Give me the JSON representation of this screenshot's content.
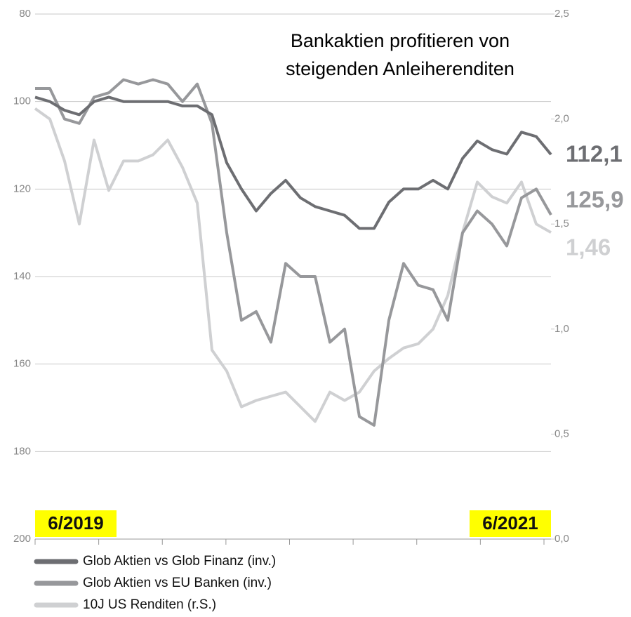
{
  "chart_data": {
    "type": "line",
    "title": [
      "Bankaktien profitieren von",
      "steigenden Anleiherenditen"
    ],
    "start_label": "6/2019",
    "end_label": "6/2021",
    "ylim": [
      80,
      200
    ],
    "y_inverted": true,
    "yticks": [
      80,
      100,
      120,
      140,
      160,
      180,
      200
    ],
    "y2lim": [
      0,
      2.5
    ],
    "y2ticks": [
      {
        "value": 0,
        "label": "0,0"
      },
      {
        "value": 0.5,
        "label": "0,5"
      },
      {
        "value": 1,
        "label": "1,0"
      },
      {
        "value": 1.5,
        "label": "1,5"
      },
      {
        "value": 2,
        "label": "2,0"
      },
      {
        "value": 2.5,
        "label": "2,5"
      }
    ],
    "grid": true,
    "series": [
      {
        "name": "Glob Aktien vs Glob Finanz (inv.)",
        "color": "#6d6e72",
        "last_label": "112,1",
        "values": [
          99,
          100,
          102,
          103,
          100,
          99,
          100,
          100,
          100,
          100,
          101,
          101,
          103,
          114,
          120,
          125,
          121,
          118,
          122,
          124,
          125,
          126,
          129,
          129,
          123,
          120,
          120,
          118,
          120,
          113,
          109,
          111,
          112,
          107,
          108,
          112.1
        ]
      },
      {
        "name": "Glob Aktien vs EU Banken (inv.)",
        "color": "#97989b",
        "last_label": "125,9",
        "values": [
          97,
          97,
          104,
          105,
          99,
          98,
          95,
          96,
          95,
          96,
          100,
          96,
          105,
          130,
          150,
          148,
          155,
          137,
          140,
          140,
          155,
          152,
          172,
          174,
          150,
          137,
          142,
          143,
          150,
          130,
          125,
          128,
          133,
          122,
          120,
          125.9
        ]
      },
      {
        "name": "10J US Renditen (r.S.)",
        "color": "#cfd0d2",
        "axis": "y2",
        "last_label": "1,46",
        "values": [
          2.05,
          2.0,
          1.8,
          1.5,
          1.9,
          1.66,
          1.8,
          1.8,
          1.83,
          1.9,
          1.77,
          1.6,
          0.9,
          0.8,
          0.63,
          0.66,
          0.68,
          0.7,
          0.63,
          0.56,
          0.7,
          0.66,
          0.7,
          0.8,
          0.86,
          0.91,
          0.93,
          1.0,
          1.16,
          1.46,
          1.7,
          1.63,
          1.6,
          1.7,
          1.5,
          1.46
        ]
      }
    ]
  }
}
